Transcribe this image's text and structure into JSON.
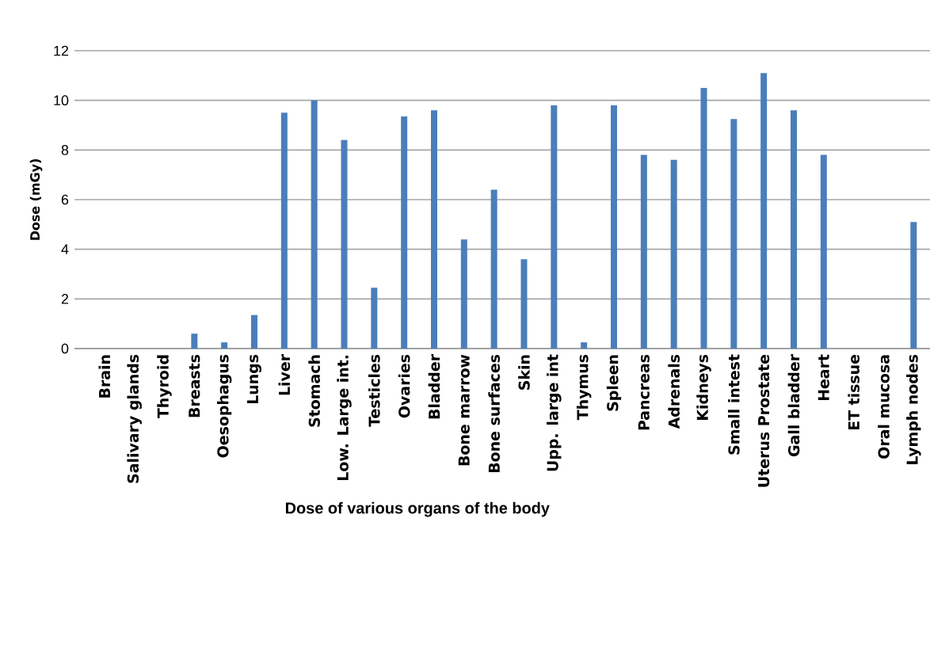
{
  "chart_data": {
    "type": "bar",
    "xlabel": "Dose of various organs of the body",
    "ylabel": "Dose (mGy)",
    "categories": [
      "Brain",
      "Salivary glands",
      "Thyroid",
      "Breasts",
      "Oesophagus",
      "Lungs",
      "Liver",
      "Stomach",
      "Low. Large int.",
      "Testicles",
      "Ovaries",
      "Bladder",
      "Bone marrow",
      "Bone surfaces",
      "Skin",
      "Upp. large int",
      "Thymus",
      "Spleen",
      "Pancreas",
      "Adrenals",
      "Kidneys",
      "Small intest",
      "Uterus Prostate",
      "Gall bladder",
      "Heart",
      "ET tissue",
      "Oral mucosa",
      "Lymph nodes"
    ],
    "values": [
      0,
      0,
      0,
      0.6,
      0.25,
      1.35,
      9.5,
      10,
      8.4,
      2.45,
      9.35,
      9.6,
      4.4,
      6.4,
      3.6,
      9.8,
      0.25,
      9.8,
      7.8,
      7.6,
      10.5,
      9.25,
      11.1,
      9.6,
      7.8,
      0,
      0,
      5.1
    ],
    "color": "#4a7ebb",
    "ylim": [
      0,
      12
    ],
    "yticks": [
      0,
      2,
      4,
      6,
      8,
      10,
      12
    ],
    "grid": "y"
  }
}
